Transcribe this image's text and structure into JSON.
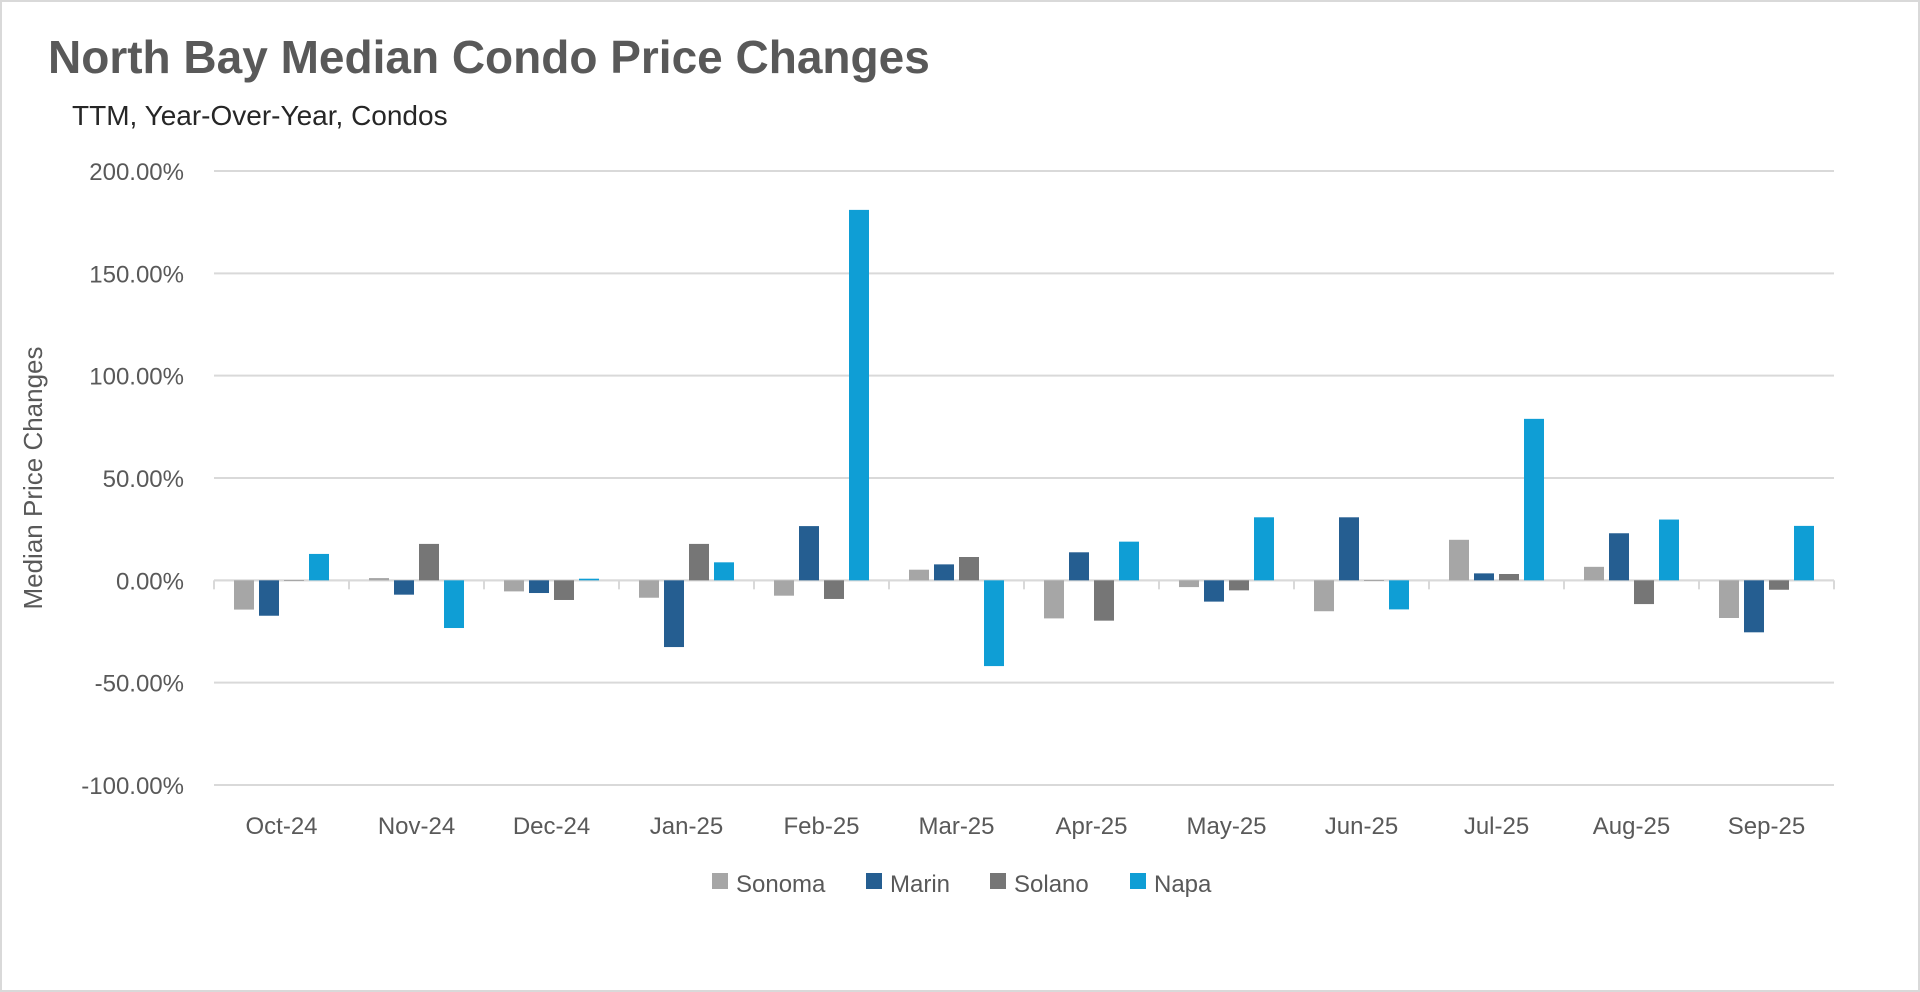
{
  "chart_data": {
    "type": "bar",
    "title": "North Bay Median Condo Price Changes",
    "subtitle": "TTM, Year-Over-Year,  Condos",
    "xlabel": "",
    "ylabel": "Median Price Changes",
    "ylim": [
      -100,
      200
    ],
    "yticks": [
      200,
      150,
      100,
      50,
      0,
      -50,
      -100
    ],
    "ytick_labels": [
      "200.00%",
      "150.00%",
      "100.00%",
      "50.00%",
      "0.00%",
      "-50.00%",
      "-100.00%"
    ],
    "grid": true,
    "legend_position": "bottom",
    "categories": [
      "Oct-24",
      "Nov-24",
      "Dec-24",
      "Jan-25",
      "Feb-25",
      "Mar-25",
      "Apr-25",
      "May-25",
      "Jun-25",
      "Jul-25",
      "Aug-25",
      "Sep-25"
    ],
    "series": [
      {
        "name": "Sonoma",
        "color": "#a6a6a6",
        "values": [
          -14.3,
          1.1,
          -5.4,
          -8.5,
          -7.5,
          5.2,
          -18.6,
          -3.3,
          -15.1,
          19.8,
          6.6,
          -18.4
        ]
      },
      {
        "name": "Marin",
        "color": "#255e91",
        "values": [
          -17.3,
          -7.0,
          -6.2,
          -32.6,
          26.5,
          7.8,
          13.7,
          -10.4,
          30.8,
          3.4,
          23.0,
          -25.4
        ]
      },
      {
        "name": "Solano",
        "color": "#767676",
        "values": [
          0,
          17.8,
          -9.6,
          17.8,
          -9.1,
          11.4,
          -19.7,
          -4.9,
          0,
          3.1,
          -11.6,
          -4.6
        ]
      },
      {
        "name": "Napa",
        "color": "#0f9ed5",
        "values": [
          12.9,
          -23.3,
          0.8,
          8.8,
          181.0,
          -41.9,
          18.9,
          30.8,
          -14.2,
          78.9,
          29.7,
          26.6
        ]
      }
    ]
  }
}
